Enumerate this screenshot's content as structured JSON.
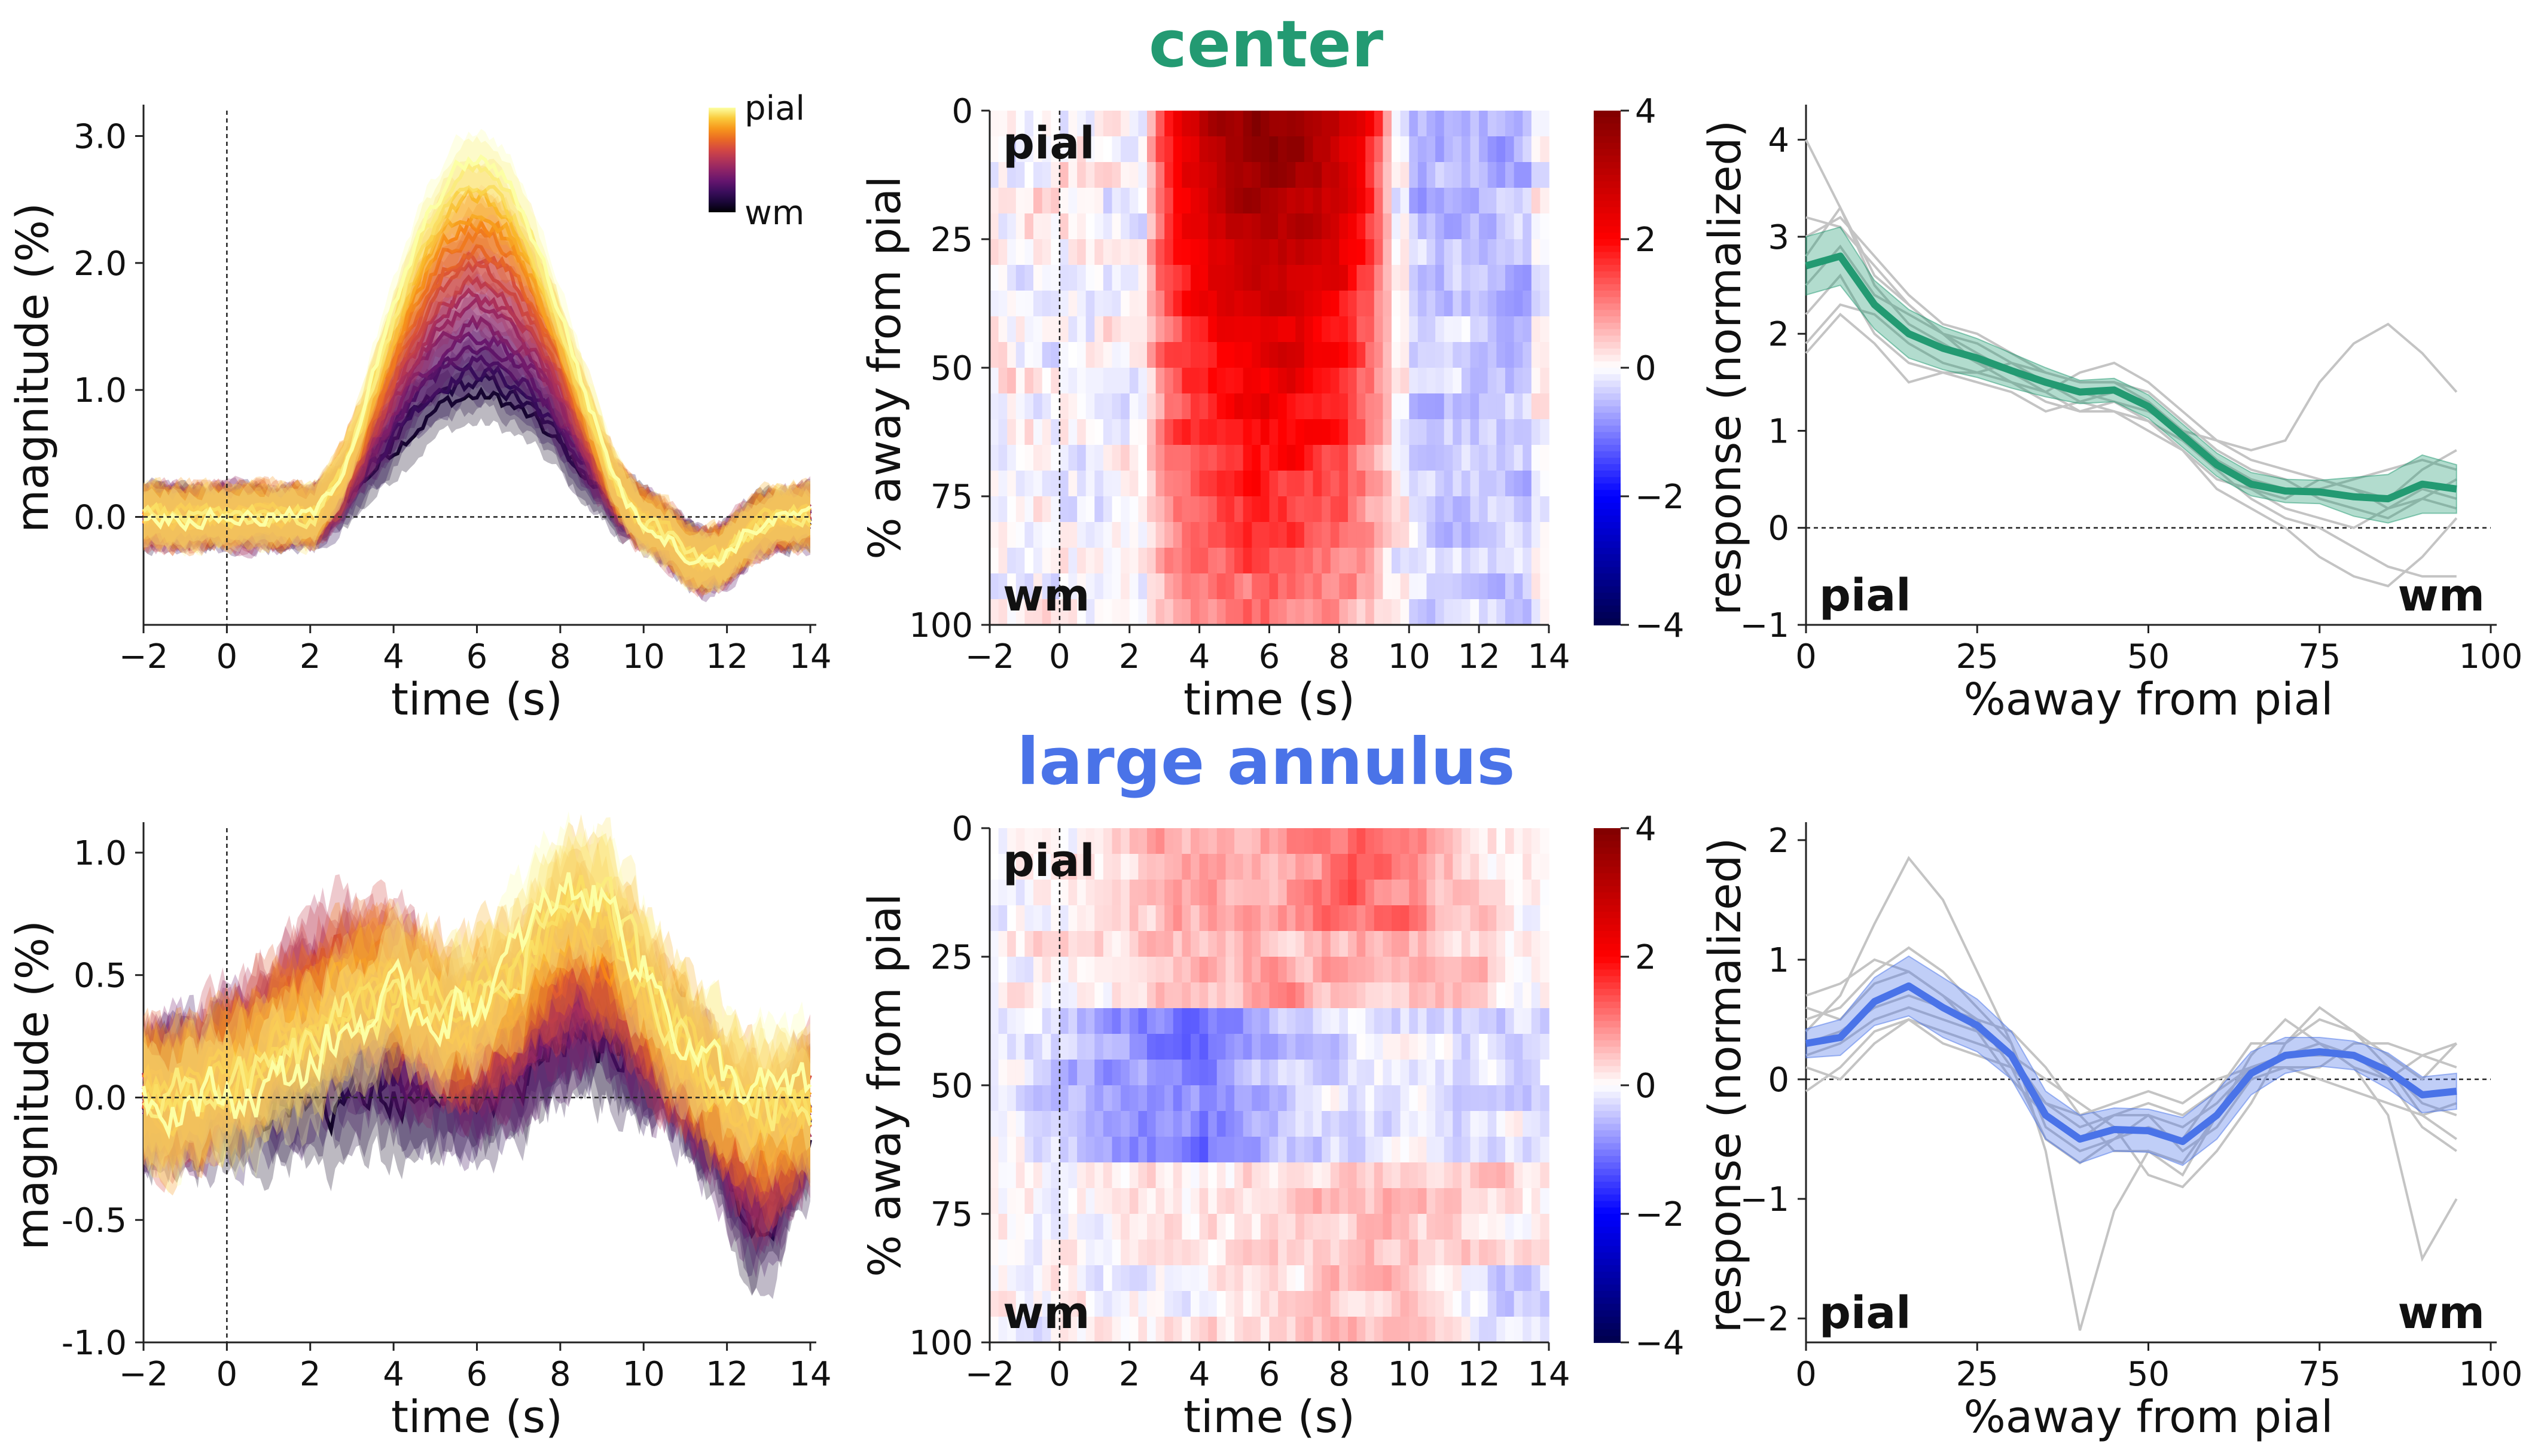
{
  "figure": {
    "rows": [
      {
        "title": "center",
        "title_color": "#239a72"
      },
      {
        "title": "large annulus",
        "title_color": "#4a73e8"
      }
    ],
    "corner_labels": {
      "pial": "pial",
      "wm": "wm"
    },
    "colorbar_labels": {
      "top": "pial",
      "bottom": "wm"
    }
  },
  "chart_data": [
    {
      "type": "line",
      "panel": "center-timecourse",
      "xlabel": "time (s)",
      "ylabel": "magnitude (%)",
      "xlim": [
        -2,
        14
      ],
      "ylim": [
        -0.85,
        3.2
      ],
      "xticks": [
        -2,
        0,
        2,
        4,
        6,
        8,
        10,
        12,
        14
      ],
      "yticks": [
        0.0,
        1.0,
        2.0,
        3.0
      ],
      "ytick_labels": [
        "0.0",
        "1.0",
        "2.0",
        "3.0"
      ],
      "reference_lines": {
        "x": 0,
        "y": 0
      },
      "depth_colormap": "inferno (pial = yellow, wm = dark)",
      "n_depths": 20,
      "profile": {
        "type": "hrf",
        "onset": 2,
        "peak_time": 5.5,
        "end": 10,
        "undershoot_time": 11.5,
        "undershoot_amp": 0.35
      },
      "peak_by_depth": {
        "pial": 2.8,
        "wm": 0.95
      }
    },
    {
      "type": "heatmap",
      "panel": "center-heatmap",
      "xlabel": "time (s)",
      "ylabel": "% away from pial",
      "xlim": [
        -2,
        14
      ],
      "ylim": [
        100,
        0
      ],
      "xticks": [
        -2,
        0,
        2,
        4,
        6,
        8,
        10,
        12,
        14
      ],
      "yticks": [
        0,
        25,
        50,
        75,
        100
      ],
      "colorbar": {
        "range": [
          -4,
          4
        ],
        "ticks": [
          -4,
          -2,
          0,
          2,
          4
        ],
        "cmap": "seismic"
      },
      "structure": {
        "rise_time": 2.5,
        "fall_time": 9.5,
        "peak_time": 5.5,
        "pial_value": 3.8,
        "wm_value": 1.0,
        "post_offset_value": -0.6
      }
    },
    {
      "type": "line",
      "panel": "center-profile",
      "xlabel": "%away from pial",
      "ylabel": "response (normalized)",
      "xlim": [
        0,
        100
      ],
      "ylim": [
        -1,
        4.3
      ],
      "xticks": [
        0,
        25,
        50,
        75,
        100
      ],
      "yticks": [
        -1,
        0,
        1,
        2,
        3,
        4
      ],
      "reference_lines": {
        "y": 0
      },
      "series": [
        {
          "name": "",
          "color": "#239a72",
          "x": [
            0,
            5,
            10,
            15,
            20,
            25,
            30,
            35,
            40,
            45,
            50,
            55,
            60,
            65,
            70,
            75,
            80,
            85,
            90,
            95
          ],
          "values": [
            2.7,
            2.8,
            2.3,
            2.0,
            1.85,
            1.75,
            1.62,
            1.5,
            1.4,
            1.42,
            1.25,
            0.95,
            0.65,
            0.45,
            0.38,
            0.37,
            0.32,
            0.3,
            0.45,
            0.4
          ],
          "band": [
            0.3,
            0.3,
            0.25,
            0.25,
            0.22,
            0.2,
            0.18,
            0.15,
            0.12,
            0.12,
            0.12,
            0.12,
            0.12,
            0.12,
            0.12,
            0.12,
            0.2,
            0.25,
            0.3,
            0.25
          ]
        }
      ],
      "individual_color": "#c4c4c4",
      "individuals": [
        [
          4.0,
          3.3,
          2.5,
          2.1,
          1.9,
          1.7,
          1.6,
          1.5,
          1.3,
          1.2,
          1.1,
          0.9,
          0.6,
          0.3,
          0.1,
          0.0,
          -0.2,
          -0.4,
          -0.5,
          -0.5
        ],
        [
          2.2,
          2.6,
          2.0,
          1.7,
          1.6,
          1.5,
          1.4,
          1.2,
          1.3,
          1.4,
          1.3,
          1.0,
          0.7,
          0.5,
          0.4,
          0.4,
          0.5,
          0.6,
          0.7,
          0.6
        ],
        [
          3.0,
          3.2,
          2.8,
          2.4,
          2.1,
          2.0,
          1.8,
          1.6,
          1.5,
          1.5,
          1.4,
          1.1,
          0.8,
          0.6,
          0.5,
          0.3,
          0.2,
          0.1,
          0.3,
          0.5
        ],
        [
          1.9,
          2.3,
          2.2,
          1.9,
          1.7,
          1.6,
          1.5,
          1.4,
          1.6,
          1.7,
          1.5,
          1.2,
          0.9,
          0.8,
          0.9,
          1.5,
          1.9,
          2.1,
          1.8,
          1.4
        ],
        [
          2.5,
          2.9,
          2.4,
          2.2,
          2.0,
          1.9,
          1.7,
          1.5,
          1.4,
          1.3,
          1.1,
          0.8,
          0.4,
          0.2,
          0.0,
          -0.3,
          -0.5,
          -0.6,
          -0.3,
          0.1
        ],
        [
          3.2,
          3.1,
          2.7,
          2.3,
          2.0,
          1.8,
          1.6,
          1.4,
          1.2,
          1.3,
          1.2,
          1.0,
          0.7,
          0.4,
          0.3,
          0.5,
          0.4,
          0.2,
          0.4,
          0.3
        ],
        [
          2.8,
          3.3,
          2.6,
          2.3,
          2.0,
          1.7,
          1.5,
          1.3,
          1.2,
          1.2,
          1.0,
          0.8,
          0.5,
          0.4,
          0.2,
          0.1,
          0.0,
          0.2,
          0.3,
          0.2
        ],
        [
          1.8,
          2.2,
          1.9,
          1.5,
          1.6,
          1.6,
          1.7,
          1.6,
          1.5,
          1.5,
          1.3,
          1.0,
          0.9,
          0.7,
          0.6,
          0.5,
          0.4,
          0.3,
          0.6,
          0.8
        ]
      ]
    },
    {
      "type": "line",
      "panel": "annulus-timecourse",
      "xlabel": "time (s)",
      "ylabel": "magnitude (%)",
      "xlim": [
        -2,
        14
      ],
      "ylim": [
        -1.0,
        1.1
      ],
      "xticks": [
        -2,
        0,
        2,
        4,
        6,
        8,
        10,
        12,
        14
      ],
      "yticks": [
        -1.0,
        -0.5,
        0.0,
        0.5,
        1.0
      ],
      "ytick_labels": [
        "-1.0",
        "-0.5",
        "0.0",
        "0.5",
        "1.0"
      ],
      "reference_lines": {
        "x": 0,
        "y": 0
      },
      "depth_colormap": "inferno (pial = yellow, wm = dark)",
      "n_depths": 20,
      "profile": {
        "type": "mixed",
        "peak_time": 8.5,
        "pial_peak": 0.85,
        "mid_dip": -0.45,
        "dip_time": 2.5,
        "late_dip_time": 12.8
      }
    },
    {
      "type": "heatmap",
      "panel": "annulus-heatmap",
      "xlabel": "time (s)",
      "ylabel": "% away from pial",
      "xlim": [
        -2,
        14
      ],
      "ylim": [
        100,
        0
      ],
      "xticks": [
        -2,
        0,
        2,
        4,
        6,
        8,
        10,
        12,
        14
      ],
      "yticks": [
        0,
        25,
        50,
        75,
        100
      ],
      "colorbar": {
        "range": [
          -4,
          4
        ],
        "ticks": [
          -4,
          -2,
          0,
          2,
          4
        ],
        "cmap": "seismic"
      },
      "structure": {
        "pial_pos_value": 1.1,
        "mid_neg_value": -1.0,
        "deep_pos_value": 0.5
      }
    },
    {
      "type": "line",
      "panel": "annulus-profile",
      "xlabel": "%away from pial",
      "ylabel": "response (normalized)",
      "xlim": [
        0,
        100
      ],
      "ylim": [
        -2.2,
        2.1
      ],
      "xticks": [
        0,
        25,
        50,
        75,
        100
      ],
      "yticks": [
        -2,
        -1,
        0,
        1,
        2
      ],
      "reference_lines": {
        "y": 0
      },
      "series": [
        {
          "name": "",
          "color": "#4a73e8",
          "x": [
            0,
            5,
            10,
            15,
            20,
            25,
            30,
            35,
            40,
            45,
            50,
            55,
            60,
            65,
            70,
            75,
            80,
            85,
            90,
            95
          ],
          "values": [
            0.3,
            0.35,
            0.65,
            0.78,
            0.6,
            0.45,
            0.2,
            -0.3,
            -0.5,
            -0.42,
            -0.43,
            -0.52,
            -0.3,
            0.05,
            0.2,
            0.23,
            0.2,
            0.07,
            -0.13,
            -0.1
          ],
          "band": [
            0.12,
            0.15,
            0.2,
            0.25,
            0.25,
            0.22,
            0.2,
            0.2,
            0.2,
            0.18,
            0.18,
            0.2,
            0.2,
            0.18,
            0.15,
            0.12,
            0.12,
            0.15,
            0.15,
            0.15
          ]
        }
      ],
      "individual_color": "#c4c4c4",
      "individuals": [
        [
          0.4,
          0.7,
          1.3,
          1.85,
          1.5,
          0.9,
          0.3,
          -0.6,
          -2.1,
          -1.1,
          -0.6,
          -0.8,
          -0.3,
          0.2,
          0.5,
          0.3,
          0.1,
          -0.3,
          -1.5,
          -1.0
        ],
        [
          0.5,
          0.6,
          0.9,
          1.1,
          0.9,
          0.6,
          0.3,
          -0.4,
          -0.6,
          -0.5,
          -0.4,
          -0.5,
          -0.1,
          0.3,
          0.3,
          0.6,
          0.4,
          0.2,
          0.0,
          0.3
        ],
        [
          0.2,
          0.3,
          0.5,
          0.6,
          0.5,
          0.4,
          0.2,
          -0.2,
          -0.4,
          -0.3,
          -0.3,
          -0.4,
          -0.2,
          0.1,
          0.2,
          0.2,
          0.2,
          0.1,
          -0.2,
          -0.3
        ],
        [
          0.7,
          0.8,
          1.0,
          0.9,
          0.7,
          0.5,
          0.1,
          -0.5,
          -0.7,
          -0.5,
          -0.3,
          -0.6,
          -0.4,
          0.0,
          0.1,
          0.1,
          0.3,
          0.3,
          0.2,
          0.1
        ],
        [
          0.1,
          0.0,
          0.3,
          0.5,
          0.4,
          0.3,
          0.2,
          0.0,
          -0.2,
          -0.4,
          -0.8,
          -0.9,
          -0.6,
          -0.2,
          0.3,
          0.5,
          0.4,
          0.1,
          -0.3,
          -0.5
        ],
        [
          0.3,
          0.4,
          0.6,
          0.7,
          0.6,
          0.5,
          0.4,
          0.1,
          -0.3,
          -0.6,
          -0.6,
          -0.7,
          -0.3,
          0.1,
          0.2,
          0.3,
          0.1,
          0.0,
          0.2,
          0.3
        ],
        [
          0.6,
          0.5,
          0.8,
          0.9,
          0.7,
          0.4,
          0.0,
          -0.3,
          -0.5,
          -0.3,
          -0.2,
          -0.3,
          -0.1,
          0.1,
          0.1,
          0.0,
          -0.1,
          -0.2,
          -0.3,
          -0.2
        ],
        [
          -0.1,
          0.1,
          0.4,
          0.5,
          0.3,
          0.2,
          0.1,
          -0.2,
          -0.3,
          -0.2,
          -0.1,
          -0.2,
          0.0,
          0.1,
          0.2,
          0.3,
          0.2,
          0.0,
          -0.4,
          -0.6
        ]
      ]
    }
  ]
}
